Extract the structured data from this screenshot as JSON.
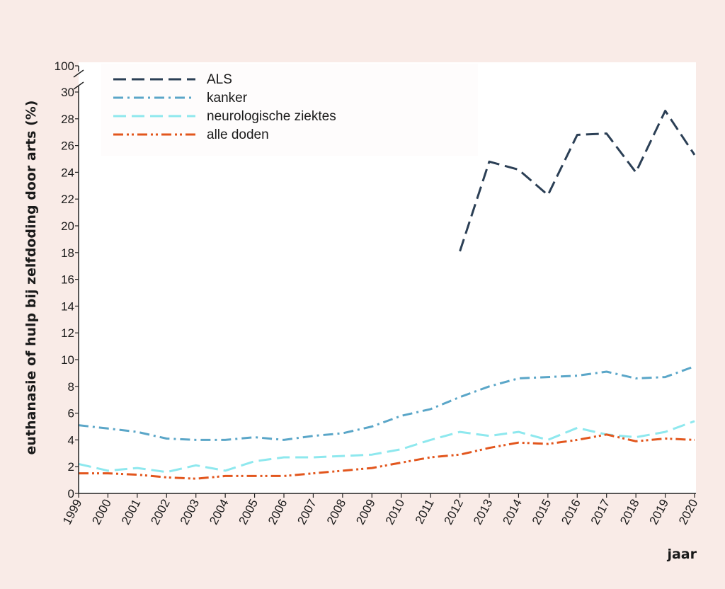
{
  "chart_data": {
    "type": "line",
    "title": "",
    "xlabel": "jaar",
    "ylabel": "euthanasie of hulp bij zelfdoding door arts (%)",
    "x": [
      1999,
      2000,
      2001,
      2002,
      2003,
      2004,
      2005,
      2006,
      2007,
      2008,
      2009,
      2010,
      2011,
      2012,
      2013,
      2014,
      2015,
      2016,
      2017,
      2018,
      2019,
      2020
    ],
    "ylim": [
      0,
      30
    ],
    "y_break": {
      "from": 30,
      "to": 100
    },
    "yticks": [
      0,
      2,
      4,
      6,
      8,
      10,
      12,
      14,
      16,
      18,
      20,
      22,
      24,
      26,
      28,
      30,
      100
    ],
    "grid": false,
    "legend_position": "top-left",
    "series": [
      {
        "name": "ALS",
        "color": "#2b3f55",
        "dash": "dashed",
        "values": [
          null,
          null,
          null,
          null,
          null,
          null,
          null,
          null,
          null,
          null,
          null,
          null,
          null,
          18.1,
          24.8,
          24.2,
          22.3,
          26.8,
          26.9,
          24.0,
          28.6,
          25.3
        ]
      },
      {
        "name": "kanker",
        "color": "#5aa6c8",
        "dash": "dash-dot",
        "values": [
          5.1,
          4.85,
          4.6,
          4.1,
          4.0,
          4.0,
          4.2,
          4.0,
          4.3,
          4.5,
          5.0,
          5.8,
          6.3,
          7.2,
          8.0,
          8.6,
          8.7,
          8.8,
          9.1,
          8.6,
          8.7,
          9.5
        ]
      },
      {
        "name": "neurologische ziektes",
        "color": "#8ee8ee",
        "dash": "dashed",
        "values": [
          2.2,
          1.7,
          1.9,
          1.6,
          2.1,
          1.7,
          2.4,
          2.7,
          2.7,
          2.8,
          2.9,
          3.3,
          4.0,
          4.6,
          4.3,
          4.6,
          4.0,
          4.9,
          4.4,
          4.2,
          4.6,
          5.4
        ]
      },
      {
        "name": "alle doden",
        "color": "#e2561d",
        "dash": "dash-dot-dot",
        "values": [
          1.5,
          1.5,
          1.4,
          1.2,
          1.1,
          1.3,
          1.3,
          1.3,
          1.5,
          1.7,
          1.9,
          2.3,
          2.7,
          2.9,
          3.4,
          3.8,
          3.7,
          4.0,
          4.4,
          3.9,
          4.1,
          4.0
        ]
      }
    ]
  }
}
